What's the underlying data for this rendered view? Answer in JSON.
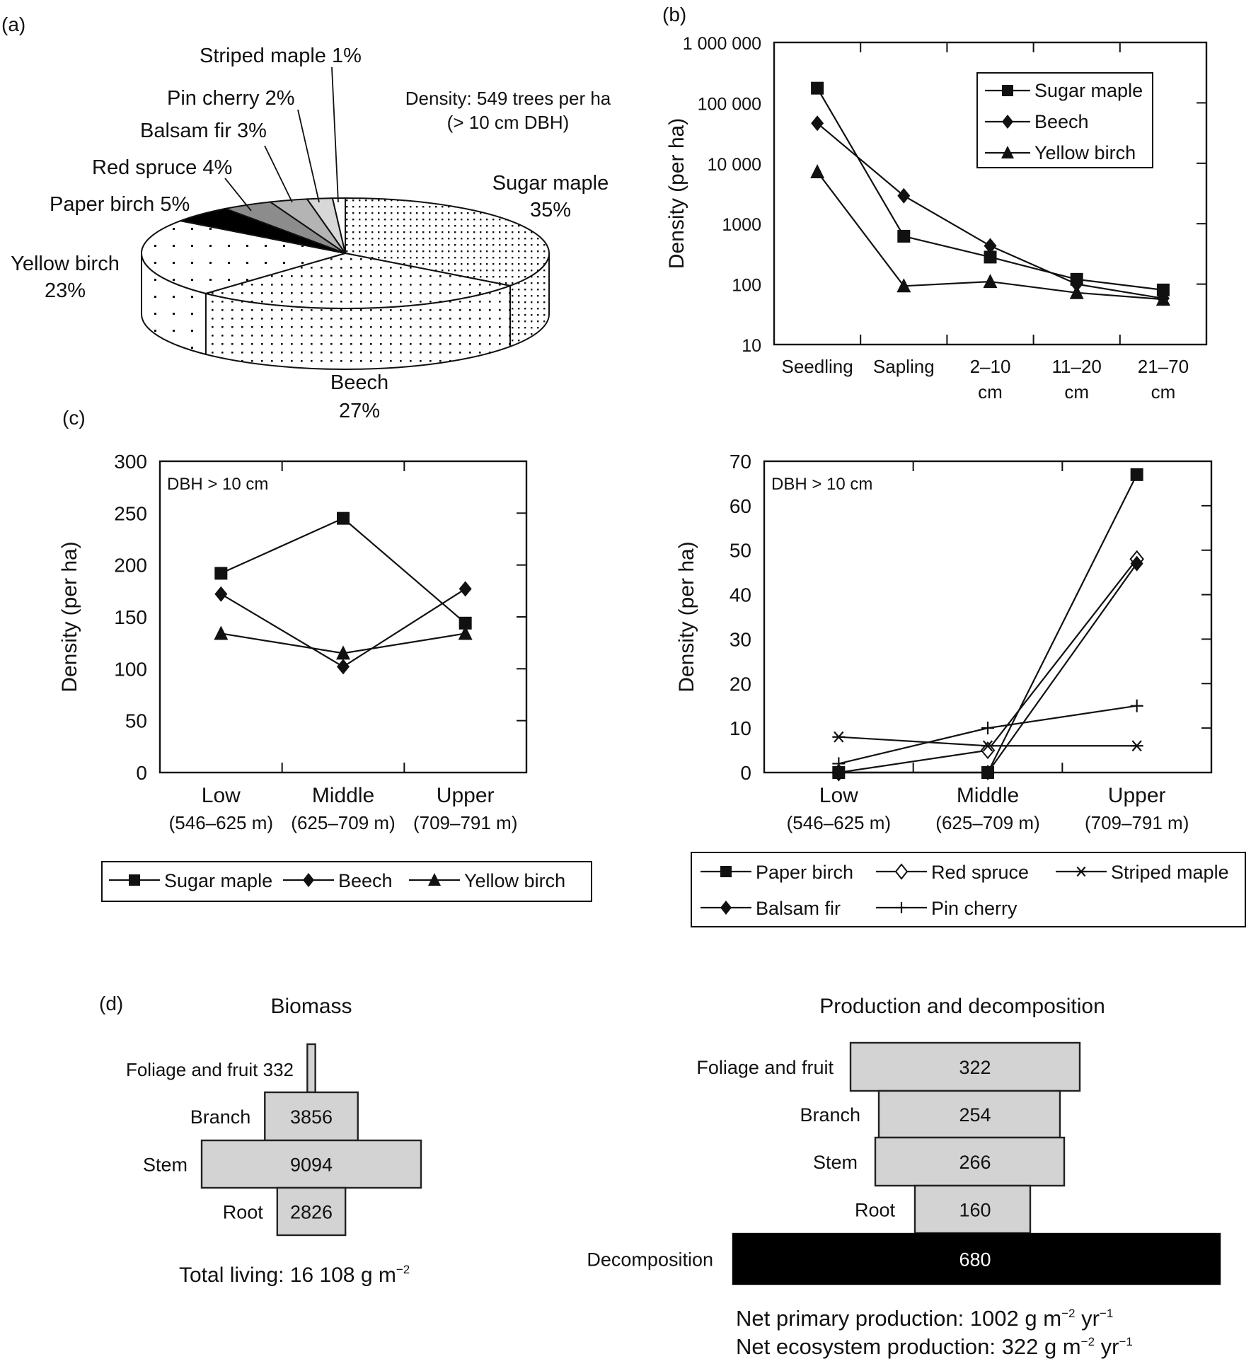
{
  "panel_labels": {
    "a": "(a)",
    "b": "(b)",
    "c": "(c)",
    "d": "(d)"
  },
  "chart_data": [
    {
      "id": "a",
      "type": "pie",
      "title": "",
      "annotation": [
        "Density: 549 trees per ha",
        "(> 10 cm DBH)"
      ],
      "slices": [
        {
          "name": "Sugar maple",
          "value": 35,
          "label": [
            "Sugar maple",
            "35%"
          ],
          "fill": "dots-dense"
        },
        {
          "name": "Beech",
          "value": 27,
          "label": [
            "Beech",
            "27%"
          ],
          "fill": "dots-medium"
        },
        {
          "name": "Yellow birch",
          "value": 23,
          "label": [
            "Yellow birch",
            "23%"
          ],
          "fill": "dots-sparse"
        },
        {
          "name": "Paper birch",
          "value": 5,
          "label": [
            "Paper birch 5%"
          ],
          "fill": "#000000"
        },
        {
          "name": "Red spruce",
          "value": 4,
          "label": [
            "Red spruce 4%"
          ],
          "fill": "#8c8c8c"
        },
        {
          "name": "Balsam fir",
          "value": 3,
          "label": [
            "Balsam fir 3%"
          ],
          "fill": "#b4b4b4"
        },
        {
          "name": "Pin cherry",
          "value": 2,
          "label": [
            "Pin cherry 2%"
          ],
          "fill": "#d8d8d8"
        },
        {
          "name": "Striped maple",
          "value": 1,
          "label": [
            "Striped maple 1%"
          ],
          "fill": "#ffffff"
        }
      ]
    },
    {
      "id": "b",
      "type": "line",
      "ylabel": "Density (per ha)",
      "yscale": "log",
      "ylim": [
        10,
        1000000
      ],
      "yticks": [
        10,
        100,
        1000,
        10000,
        100000,
        1000000
      ],
      "ytick_labels": [
        "10",
        "100",
        "1000",
        "10 000",
        "100 000",
        "1 000 000"
      ],
      "categories": [
        [
          "Seedling"
        ],
        [
          "Sapling"
        ],
        [
          "2–10",
          "cm"
        ],
        [
          "11–20",
          "cm"
        ],
        [
          "21–70",
          "cm"
        ]
      ],
      "legend_position": "top-right",
      "series": [
        {
          "name": "Sugar maple",
          "marker": "square",
          "values": [
            175000,
            620,
            280,
            120,
            80
          ]
        },
        {
          "name": "Beech",
          "marker": "diamond",
          "values": [
            46000,
            2900,
            430,
            100,
            58
          ]
        },
        {
          "name": "Yellow birch",
          "marker": "triangle",
          "values": [
            7200,
            93,
            110,
            72,
            56
          ]
        }
      ]
    },
    {
      "id": "c-left",
      "type": "line",
      "ylabel": "Density (per ha)",
      "annotation": "DBH > 10 cm",
      "ylim": [
        0,
        300
      ],
      "yticks": [
        0,
        50,
        100,
        150,
        200,
        250,
        300
      ],
      "categories": [
        [
          "Low",
          "(546–625 m)"
        ],
        [
          "Middle",
          "(625–709 m)"
        ],
        [
          "Upper",
          "(709–791 m)"
        ]
      ],
      "legend_position": "bottom",
      "series": [
        {
          "name": "Sugar maple",
          "marker": "square",
          "values": [
            192,
            245,
            144
          ]
        },
        {
          "name": "Beech",
          "marker": "diamond",
          "values": [
            172,
            102,
            177
          ]
        },
        {
          "name": "Yellow birch",
          "marker": "triangle",
          "values": [
            134,
            115,
            134
          ]
        }
      ]
    },
    {
      "id": "c-right",
      "type": "line",
      "ylabel": "Density (per ha)",
      "annotation": "DBH > 10 cm",
      "ylim": [
        0,
        70
      ],
      "yticks": [
        0,
        10,
        20,
        30,
        40,
        50,
        60,
        70
      ],
      "categories": [
        [
          "Low",
          "(546–625 m)"
        ],
        [
          "Middle",
          "(625–709 m)"
        ],
        [
          "Upper",
          "(709–791 m)"
        ]
      ],
      "legend_position": "bottom",
      "series": [
        {
          "name": "Paper birch",
          "marker": "square",
          "values": [
            0,
            0,
            67
          ]
        },
        {
          "name": "Red spruce",
          "marker": "diamond-open",
          "values": [
            0,
            5,
            48
          ]
        },
        {
          "name": "Striped maple",
          "marker": "asterisk",
          "values": [
            8,
            6,
            6
          ]
        },
        {
          "name": "Balsam fir",
          "marker": "diamond",
          "values": [
            0,
            0,
            47
          ]
        },
        {
          "name": "Pin cherry",
          "marker": "plus",
          "values": [
            2,
            10,
            15
          ]
        }
      ]
    },
    {
      "id": "d-biomass",
      "type": "bar",
      "title": "Biomass",
      "orientation": "stacked-horizontal-pyramid",
      "categories": [
        "Foliage and fruit",
        "Branch",
        "Stem",
        "Root"
      ],
      "values": [
        332,
        3856,
        9094,
        2826
      ],
      "value_labels": [
        "Foliage and fruit 332",
        "3856",
        "9094",
        "2826"
      ],
      "footer": "Total living:  16 108 g m",
      "footer_sup": "−2"
    },
    {
      "id": "d-production",
      "type": "bar",
      "title": "Production and decomposition",
      "orientation": "stacked-horizontal-pyramid",
      "categories": [
        "Foliage and fruit",
        "Branch",
        "Stem",
        "Root",
        "Decomposition"
      ],
      "values": [
        322,
        254,
        266,
        160,
        680
      ],
      "footer_lines": [
        {
          "label": "Net primary production:",
          "value": "1002 g m",
          "sup1": "−2",
          "unit": " yr",
          "sup2": "−1"
        },
        {
          "label": "Net ecosystem production:",
          "value": "322 g m",
          "sup1": "−2",
          "unit": " yr",
          "sup2": "−1"
        }
      ]
    }
  ]
}
